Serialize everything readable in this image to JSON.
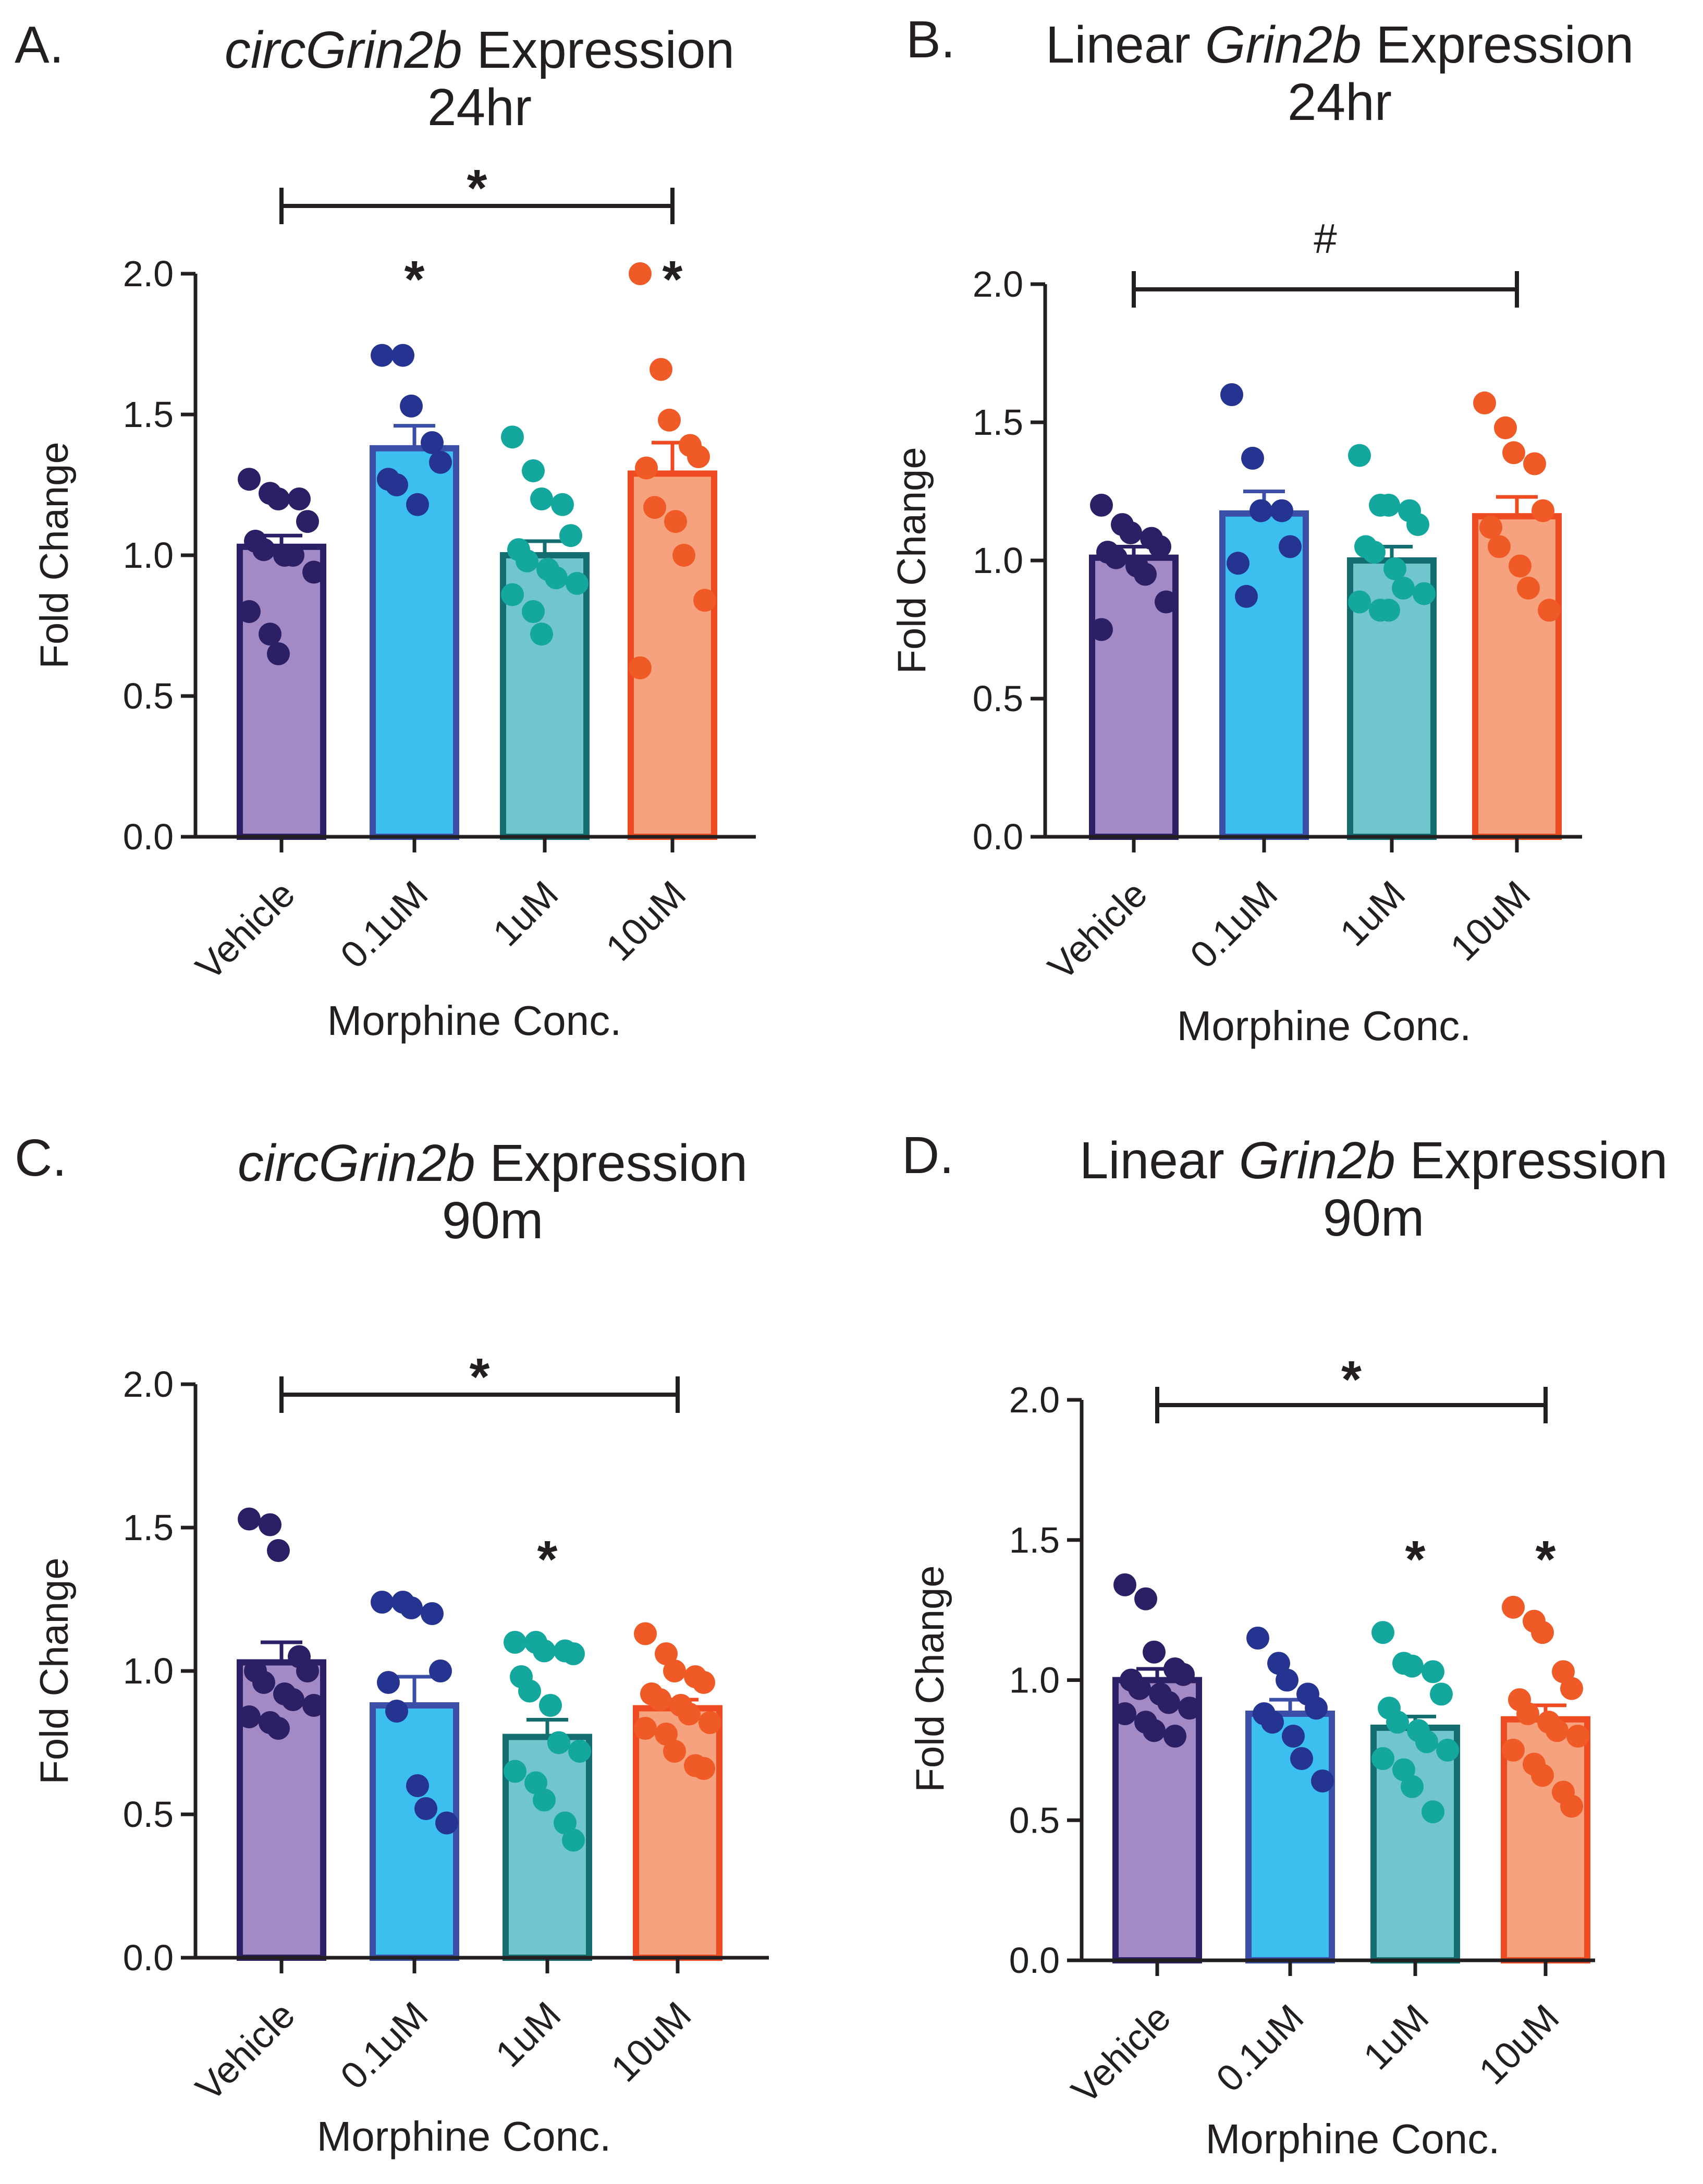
{
  "figure": {
    "colors": {
      "vehicle": {
        "fill": "#a48ac4",
        "stroke": "#2b2065",
        "dot": "#2b2065"
      },
      "low": {
        "fill": "#3cbfee",
        "stroke": "#3b4fa8",
        "dot": "#253391"
      },
      "mid": {
        "fill": "#70c6cc",
        "stroke": "#146d6f",
        "dot": "#14a79e"
      },
      "high": {
        "fill": "#f7a27e",
        "stroke": "#ef4b22",
        "dot": "#ef5a26"
      },
      "axis": "#231f20"
    }
  },
  "chart_data": [
    {
      "type": "bar",
      "panel": "A.",
      "title": {
        "italic": "circGrin2b",
        "normal": " Expression",
        "line2": "24hr"
      },
      "xlabel": "Morphine Conc.",
      "ylabel": "Fold Change",
      "ylim": [
        0,
        2.0
      ],
      "yticks": [
        "0.0",
        "0.5",
        "1.0",
        "1.5",
        "2.0"
      ],
      "categories": [
        "Vehicle",
        "0.1uM",
        "1uM",
        "10uM"
      ],
      "means": [
        1.03,
        1.38,
        1.0,
        1.29
      ],
      "sem": [
        0.04,
        0.08,
        0.05,
        0.11
      ],
      "points": [
        [
          1.27,
          1.22,
          1.2,
          1.2,
          1.12,
          1.05,
          1.02,
          1.0,
          1.0,
          0.94,
          0.8,
          0.72,
          0.65
        ],
        [
          1.71,
          1.71,
          1.53,
          1.4,
          1.33,
          1.27,
          1.25,
          1.18
        ],
        [
          1.42,
          1.3,
          1.2,
          1.18,
          1.07,
          1.02,
          0.98,
          0.95,
          0.92,
          0.9,
          0.86,
          0.8,
          0.72
        ],
        [
          2.0,
          1.66,
          1.48,
          1.39,
          1.35,
          1.31,
          1.17,
          1.12,
          1.0,
          0.84,
          0.6
        ]
      ],
      "brackets": [
        {
          "from": 0,
          "to": 3,
          "label": "*",
          "y": 2.25
        }
      ],
      "bar_marks": [
        {
          "index": 1,
          "label": "*"
        },
        {
          "index": 3,
          "label": "*"
        }
      ]
    },
    {
      "type": "bar",
      "panel": "B.",
      "title": {
        "pre": "Linear ",
        "italic": "Grin2b",
        "normal": " Expression",
        "line2": "24hr"
      },
      "xlabel": "Morphine Conc.",
      "ylabel": "Fold Change",
      "ylim": [
        0,
        2.0
      ],
      "yticks": [
        "0.0",
        "0.5",
        "1.0",
        "1.5",
        "2.0"
      ],
      "categories": [
        "Vehicle",
        "0.1uM",
        "1uM",
        "10uM"
      ],
      "means": [
        1.01,
        1.17,
        1.0,
        1.16
      ],
      "sem": [
        0.04,
        0.08,
        0.05,
        0.07
      ],
      "points": [
        [
          1.2,
          1.13,
          1.1,
          1.08,
          1.05,
          1.03,
          1.01,
          0.98,
          0.95,
          0.85,
          0.75
        ],
        [
          1.6,
          1.37,
          1.18,
          1.18,
          1.05,
          0.99,
          0.87
        ],
        [
          1.38,
          1.2,
          1.2,
          1.18,
          1.13,
          1.05,
          1.03,
          0.97,
          0.9,
          0.88,
          0.85,
          0.82,
          0.82
        ],
        [
          1.57,
          1.48,
          1.39,
          1.35,
          1.18,
          1.12,
          1.05,
          0.98,
          0.9,
          0.82
        ]
      ],
      "brackets": [
        {
          "from": 0,
          "to": 3,
          "label": "#",
          "y": 2.0
        }
      ],
      "bar_marks": []
    },
    {
      "type": "bar",
      "panel": "C.",
      "title": {
        "italic": "circGrin2b",
        "normal": " Expression",
        "line2": "90m"
      },
      "xlabel": "Morphine Conc.",
      "ylabel": "Fold Change",
      "ylim": [
        0,
        2.0
      ],
      "yticks": [
        "0.0",
        "0.5",
        "1.0",
        "1.5",
        "2.0"
      ],
      "categories": [
        "Vehicle",
        "0.1uM",
        "1uM",
        "10uM"
      ],
      "means": [
        1.03,
        0.88,
        0.77,
        0.87
      ],
      "sem": [
        0.07,
        0.1,
        0.06,
        0.03
      ],
      "points": [
        [
          1.53,
          1.51,
          1.42,
          1.05,
          1.0,
          1.0,
          0.96,
          0.92,
          0.9,
          0.88,
          0.84,
          0.82,
          0.8
        ],
        [
          1.24,
          1.24,
          1.22,
          1.2,
          1.0,
          0.96,
          0.86,
          0.6,
          0.52,
          0.47
        ],
        [
          1.1,
          1.1,
          1.07,
          1.07,
          1.06,
          0.98,
          0.93,
          0.88,
          0.75,
          0.72,
          0.65,
          0.61,
          0.55,
          0.47,
          0.41
        ],
        [
          1.13,
          1.06,
          1.0,
          0.98,
          0.96,
          0.92,
          0.9,
          0.88,
          0.85,
          0.82,
          0.8,
          0.78,
          0.72,
          0.67,
          0.66
        ]
      ],
      "brackets": [
        {
          "from": 0,
          "to": 3,
          "label": "*",
          "y": 2.05
        }
      ],
      "bar_marks": [
        {
          "index": 2,
          "label": "*"
        }
      ]
    },
    {
      "type": "bar",
      "panel": "D.",
      "title": {
        "pre": "Linear ",
        "italic": "Grin2b",
        "normal": " Expression",
        "line2": "90m"
      },
      "xlabel": "Morphine Conc.",
      "ylabel": "Fold Change",
      "ylim": [
        0,
        2.0
      ],
      "yticks": [
        "0.0",
        "0.5",
        "1.0",
        "1.5",
        "2.0"
      ],
      "categories": [
        "Vehicle",
        "0.1uM",
        "1uM",
        "10uM"
      ],
      "means": [
        1.0,
        0.88,
        0.83,
        0.86
      ],
      "sem": [
        0.04,
        0.05,
        0.04,
        0.05
      ],
      "points": [
        [
          1.34,
          1.29,
          1.1,
          1.04,
          1.02,
          1.0,
          0.97,
          0.95,
          0.92,
          0.9,
          0.88,
          0.85,
          0.82,
          0.8
        ],
        [
          1.15,
          1.06,
          1.0,
          0.95,
          0.9,
          0.88,
          0.85,
          0.8,
          0.72,
          0.64
        ],
        [
          1.17,
          1.06,
          1.05,
          1.03,
          0.95,
          0.9,
          0.85,
          0.82,
          0.78,
          0.75,
          0.72,
          0.68,
          0.62,
          0.53
        ],
        [
          1.26,
          1.21,
          1.17,
          1.03,
          0.97,
          0.93,
          0.88,
          0.85,
          0.82,
          0.8,
          0.75,
          0.7,
          0.66,
          0.6,
          0.55
        ]
      ],
      "brackets": [
        {
          "from": 0,
          "to": 3,
          "label": "*",
          "y": 2.0
        }
      ],
      "bar_marks": [
        {
          "index": 2,
          "label": "*"
        },
        {
          "index": 3,
          "label": "*"
        }
      ]
    }
  ]
}
